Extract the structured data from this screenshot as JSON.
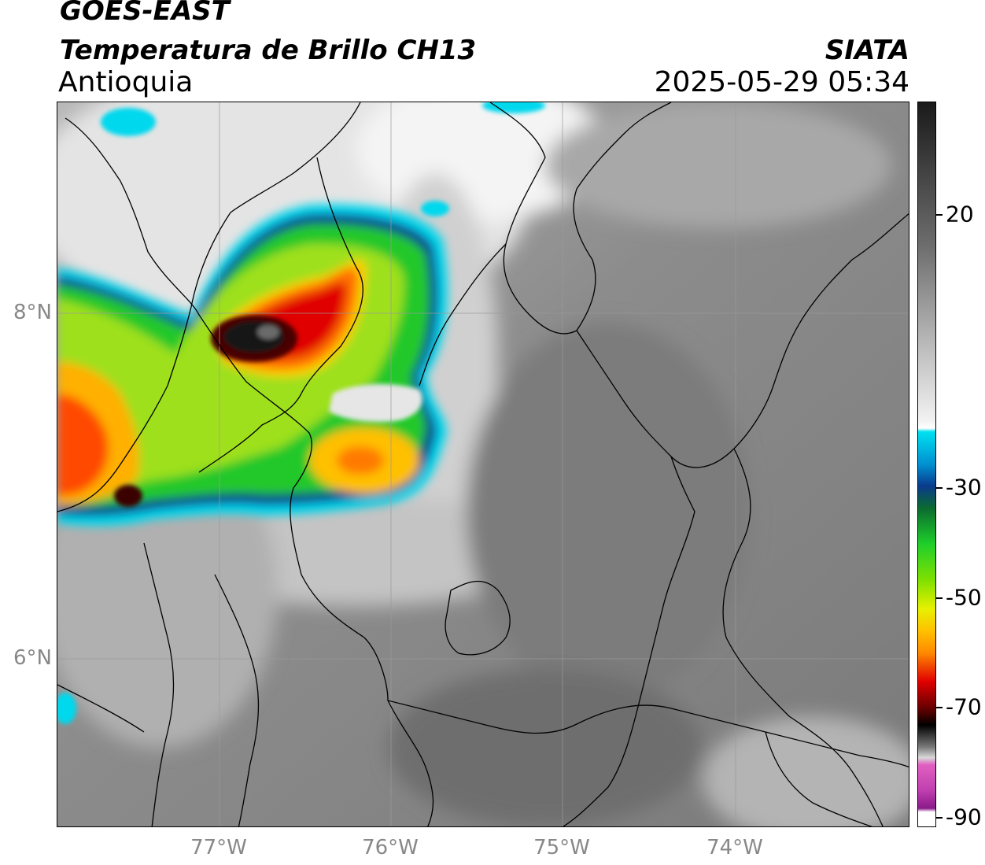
{
  "header": {
    "satellite": "GOES-EAST",
    "product": "Temperatura de Brillo CH13",
    "region": "Antioquia",
    "organization": "SIATA",
    "datetime": "2025-05-29 05:34"
  },
  "map": {
    "lat_labels": [
      "8°N",
      "6°N"
    ],
    "lon_labels": [
      "77°W",
      "76°W",
      "75°W",
      "74°W"
    ]
  },
  "colorbar": {
    "tick_labels": [
      "20",
      "-30",
      "-50",
      "-70",
      "-90"
    ],
    "colors": {
      "gray_warm": "#1a1a1a",
      "gray_cold": "#f2f2f2",
      "cyan": "#00e0f0",
      "blue": "#0a3a8c",
      "green": "#1fcf2a",
      "yellow": "#e8f000",
      "orange": "#ff8a00",
      "red": "#e00000",
      "darkred": "#5a0000",
      "black": "#000000",
      "pink": "#e060c0",
      "purple": "#8a1a8a"
    }
  }
}
